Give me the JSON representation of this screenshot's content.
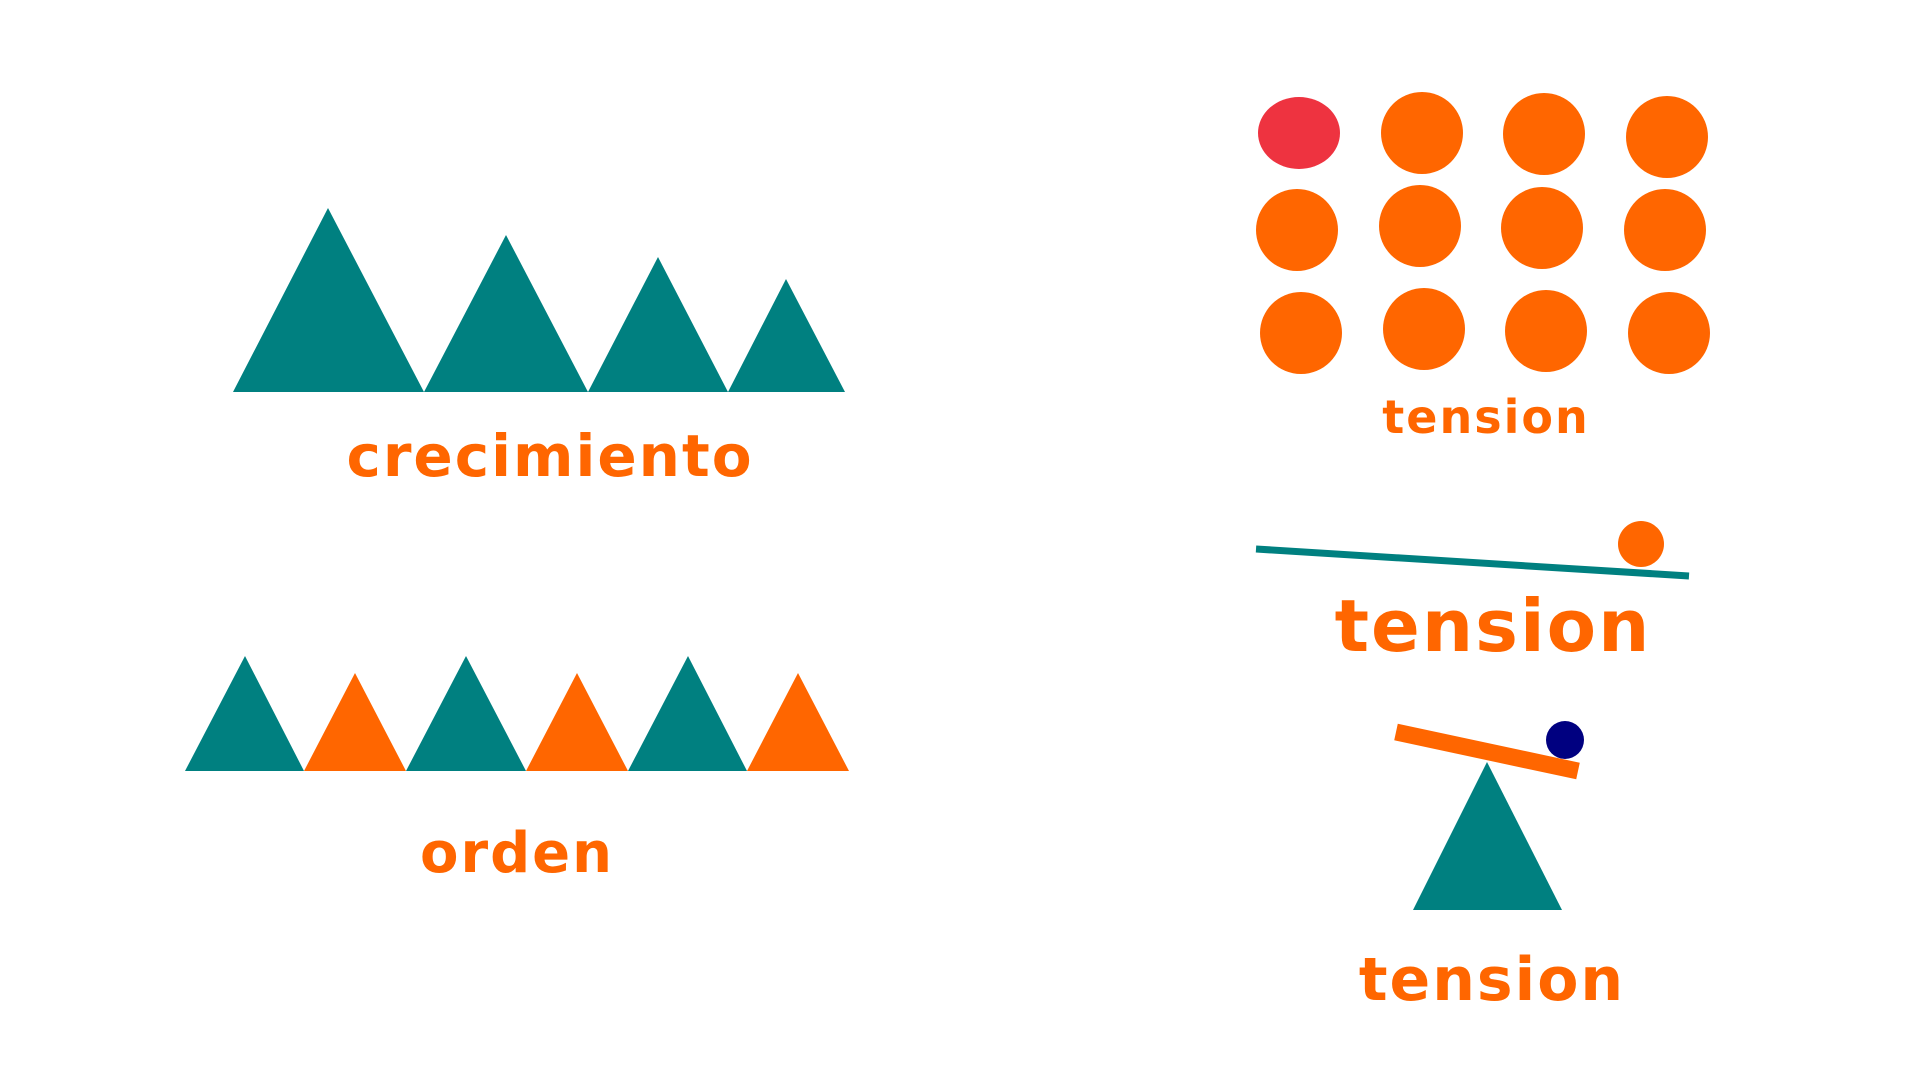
{
  "colors": {
    "teal": "#008080",
    "orange": "#ff6600",
    "red": "#ee3340",
    "navy": "#000080",
    "background": "#ffffff"
  },
  "panels": {
    "growth": {
      "label": "crecimiento",
      "triangle_count": 4,
      "relative_sizes": [
        1.0,
        0.85,
        0.73,
        0.61
      ],
      "colors": [
        "teal",
        "teal",
        "teal",
        "teal"
      ]
    },
    "order": {
      "label": "orden",
      "triangle_count": 6,
      "colors": [
        "teal",
        "orange",
        "teal",
        "orange",
        "teal",
        "orange"
      ]
    },
    "dots": {
      "label": "tension",
      "rows": 3,
      "columns": 4,
      "odd_one": {
        "row": 1,
        "column": 1,
        "color": "red"
      },
      "dot_color": "orange"
    },
    "tilted_line": {
      "label": "tension",
      "line_color": "teal",
      "ball_color": "orange"
    },
    "seesaw": {
      "label": "tension",
      "plank_color": "orange",
      "ball_color": "navy",
      "fulcrum_color": "teal"
    }
  }
}
